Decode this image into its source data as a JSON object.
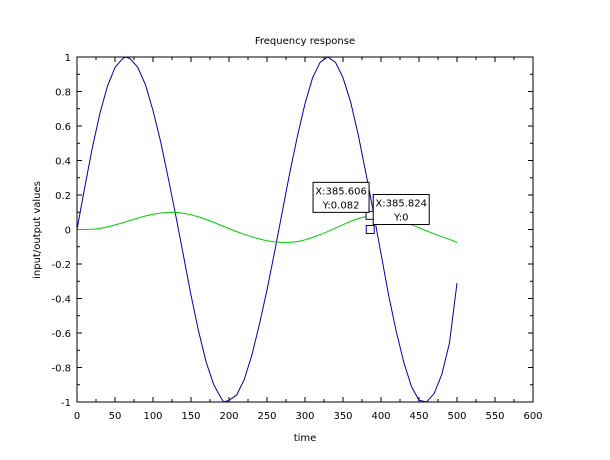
{
  "chart_data": {
    "type": "line",
    "title": "Frequency response",
    "xlabel": "time",
    "ylabel": "input/output values",
    "xlim": [
      0,
      600
    ],
    "ylim": [
      -1,
      1
    ],
    "xticks": [
      0,
      50,
      100,
      150,
      200,
      250,
      300,
      350,
      400,
      450,
      500,
      550,
      600
    ],
    "yticks": [
      -1,
      -0.8,
      -0.6,
      -0.4,
      -0.2,
      0,
      0.2,
      0.4,
      0.6,
      0.8,
      1
    ],
    "grid": false,
    "series": [
      {
        "color": "#0000aa",
        "x": [
          0,
          10,
          20,
          30,
          40,
          50,
          60,
          64,
          70,
          80,
          90,
          100,
          110,
          120,
          130,
          140,
          150,
          160,
          170,
          180,
          190,
          193,
          200,
          210,
          220,
          230,
          240,
          250,
          260,
          270,
          280,
          290,
          300,
          310,
          320,
          330,
          340,
          350,
          360,
          370,
          380,
          390,
          400,
          410,
          420,
          430,
          440,
          450,
          460,
          470,
          480,
          490,
          500
        ],
        "y": [
          0,
          0.24,
          0.47,
          0.67,
          0.83,
          0.94,
          0.99,
          1.0,
          0.99,
          0.94,
          0.84,
          0.69,
          0.51,
          0.3,
          0.08,
          -0.15,
          -0.38,
          -0.59,
          -0.77,
          -0.9,
          -0.98,
          -1.0,
          -0.99,
          -0.96,
          -0.87,
          -0.73,
          -0.55,
          -0.35,
          -0.13,
          0.1,
          0.33,
          0.54,
          0.73,
          0.88,
          0.97,
          1.0,
          0.97,
          0.88,
          0.74,
          0.55,
          0.33,
          0.1,
          -0.14,
          -0.38,
          -0.59,
          -0.77,
          -0.91,
          -0.99,
          -1.0,
          -0.95,
          -0.84,
          -0.66,
          -0.31
        ]
      },
      {
        "color": "#00cc00",
        "x": [
          0,
          10,
          20,
          30,
          40,
          50,
          60,
          70,
          80,
          90,
          100,
          110,
          120,
          125,
          130,
          140,
          150,
          160,
          170,
          180,
          190,
          200,
          210,
          220,
          230,
          240,
          250,
          260,
          270,
          280,
          290,
          300,
          310,
          320,
          330,
          340,
          350,
          360,
          370,
          380,
          385.6,
          390,
          400,
          410,
          420,
          430,
          440,
          450,
          460,
          470,
          480,
          490,
          500
        ],
        "y": [
          0,
          0.0,
          0.001,
          0.006,
          0.015,
          0.026,
          0.039,
          0.053,
          0.066,
          0.078,
          0.088,
          0.095,
          0.099,
          0.1,
          0.099,
          0.094,
          0.085,
          0.073,
          0.058,
          0.041,
          0.023,
          0.005,
          -0.012,
          -0.028,
          -0.042,
          -0.055,
          -0.065,
          -0.072,
          -0.075,
          -0.075,
          -0.07,
          -0.06,
          -0.046,
          -0.03,
          -0.012,
          0.008,
          0.028,
          0.047,
          0.063,
          0.075,
          0.082,
          0.084,
          0.08,
          0.072,
          0.06,
          0.045,
          0.028,
          0.01,
          -0.008,
          -0.025,
          -0.042,
          -0.057,
          -0.075
        ]
      }
    ],
    "datatips": [
      {
        "x": 385.606,
        "y": 0.082,
        "label_x": "X:385.606",
        "label_y": "Y:0.082",
        "box_side": "left"
      },
      {
        "x": 385.824,
        "y": 0,
        "label_x": "X:385.824",
        "label_y": "Y:0",
        "box_side": "right"
      }
    ]
  }
}
